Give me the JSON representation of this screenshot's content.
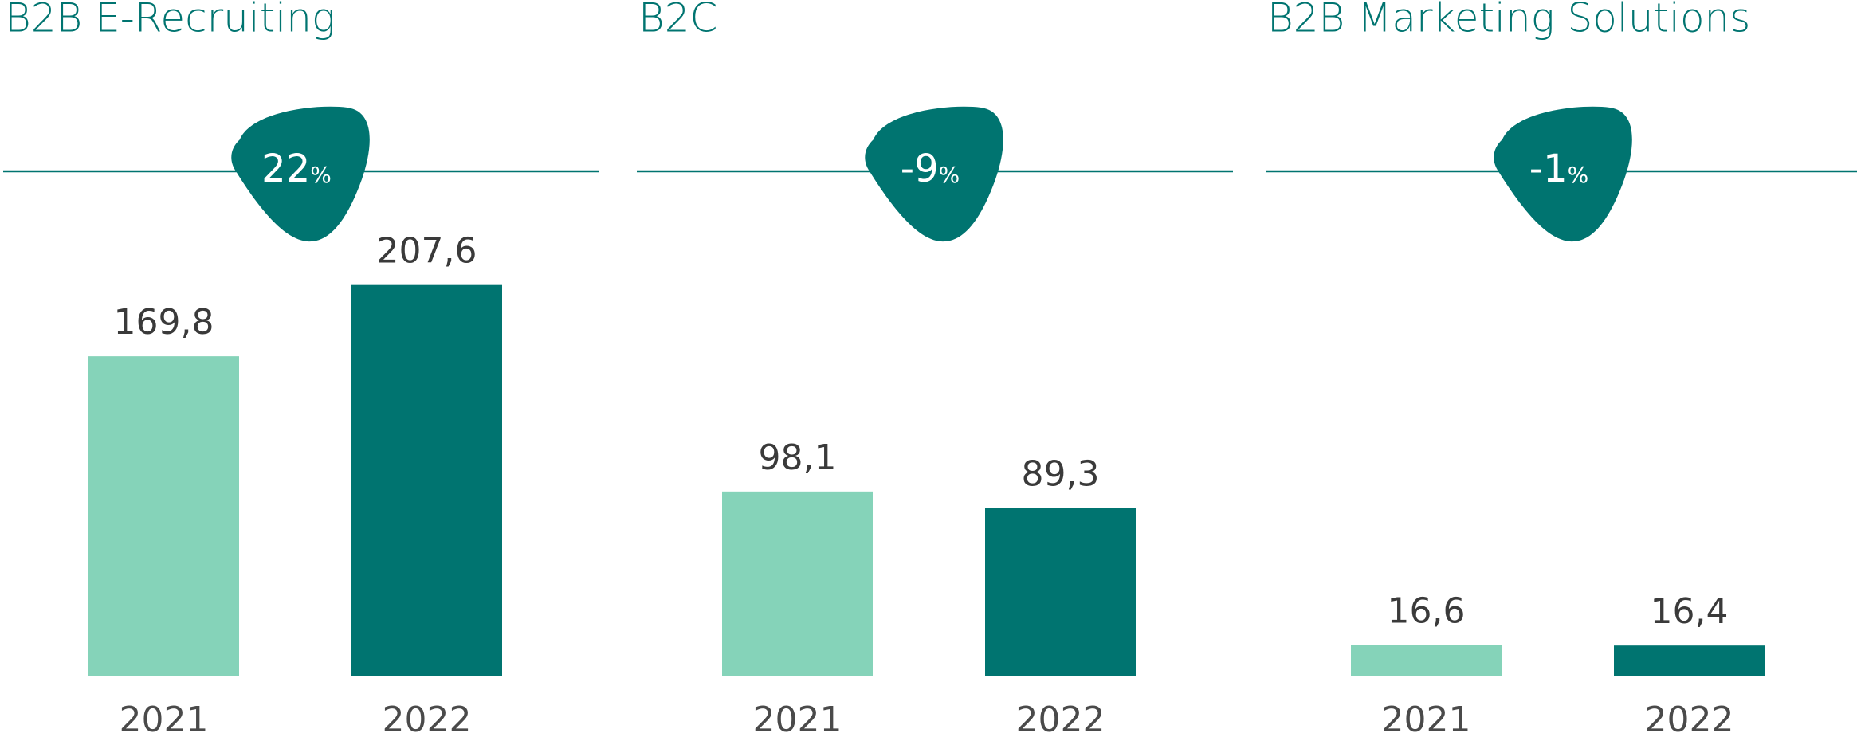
{
  "chart_data": [
    {
      "type": "bar",
      "title": "B2B E-Recruiting",
      "change": "22",
      "change_unit": "%",
      "categories": [
        "2021",
        "2022"
      ],
      "values": [
        169.8,
        207.6
      ],
      "value_labels": [
        "169,8",
        "207,6"
      ],
      "colors": [
        "#85d3b9",
        "#007470"
      ],
      "ylim": [
        0,
        210
      ]
    },
    {
      "type": "bar",
      "title": "B2C",
      "change": "-9",
      "change_unit": "%",
      "categories": [
        "2021",
        "2022"
      ],
      "values": [
        98.1,
        89.3
      ],
      "value_labels": [
        "98,1",
        "89,3"
      ],
      "colors": [
        "#85d3b9",
        "#007470"
      ],
      "ylim": [
        0,
        210
      ]
    },
    {
      "type": "bar",
      "title": "B2B Marketing Solutions",
      "change": "-1",
      "change_unit": "%",
      "categories": [
        "2021",
        "2022"
      ],
      "values": [
        16.6,
        16.4
      ],
      "value_labels": [
        "16,6",
        "16,4"
      ],
      "colors": [
        "#85d3b9",
        "#007470"
      ],
      "ylim": [
        0,
        210
      ]
    }
  ]
}
